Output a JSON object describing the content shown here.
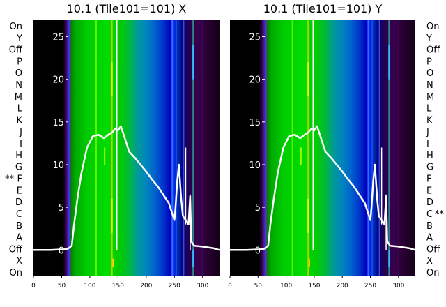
{
  "chart_data": [
    {
      "type": "heatmap",
      "title": "10.1 (Tile101=101) X",
      "xlabel": "",
      "ylabel": "",
      "xlim": [
        0,
        330
      ],
      "ylim": [
        -3,
        27
      ],
      "x_ticks": [
        0,
        50,
        100,
        150,
        200,
        250,
        300
      ],
      "y_ticks": [
        0,
        5,
        10,
        15,
        20,
        25
      ],
      "row_labels": [
        "On",
        "Y",
        "Off",
        "P",
        "O",
        "N",
        "M",
        "L",
        "K",
        "J",
        "I",
        "H",
        "G",
        "F",
        "E",
        "D",
        "C",
        "B",
        "A",
        "Off",
        "X",
        "On"
      ],
      "marked_row": "F",
      "marker": "**",
      "series": [
        {
          "x": [
            0,
            30,
            60,
            68,
            72,
            78,
            85,
            95,
            105,
            115,
            125,
            135,
            140,
            145,
            150,
            155,
            160,
            165,
            170,
            180,
            190,
            200,
            210,
            220,
            230,
            240,
            245,
            250,
            252,
            255,
            258,
            262,
            265,
            270,
            275,
            278,
            280,
            285,
            300,
            310,
            320,
            330
          ],
          "y": [
            0,
            0,
            0.1,
            0.5,
            3,
            6,
            9,
            12,
            13.3,
            13.5,
            13.1,
            13.6,
            13.8,
            14.2,
            14.0,
            14.5,
            13.5,
            12.5,
            11.5,
            10.8,
            10.0,
            9.2,
            8.3,
            7.5,
            6.5,
            5.5,
            4.5,
            3.5,
            5,
            8,
            10,
            6,
            4,
            3.5,
            3.0,
            6.3,
            1.0,
            0.5,
            0.4,
            0.3,
            0.2,
            0
          ]
        }
      ]
    },
    {
      "type": "heatmap",
      "title": "10.1 (Tile101=101) Y",
      "xlabel": "",
      "ylabel": "",
      "xlim": [
        0,
        330
      ],
      "ylim": [
        -3,
        27
      ],
      "x_ticks": [
        0,
        50,
        100,
        150,
        200,
        250,
        300
      ],
      "y_ticks": [
        0,
        5,
        10,
        15,
        20,
        25
      ],
      "row_labels": [
        "On",
        "Y",
        "Off",
        "P",
        "O",
        "N",
        "M",
        "L",
        "K",
        "J",
        "I",
        "H",
        "G",
        "F",
        "E",
        "D",
        "C",
        "B",
        "A",
        "Off",
        "X",
        "On"
      ],
      "marked_row": "C",
      "marker": "**",
      "series": [
        {
          "x": [
            0,
            30,
            60,
            68,
            72,
            78,
            85,
            95,
            105,
            115,
            125,
            135,
            140,
            145,
            150,
            155,
            160,
            165,
            170,
            180,
            190,
            200,
            210,
            220,
            230,
            240,
            245,
            250,
            252,
            255,
            258,
            262,
            265,
            270,
            275,
            278,
            280,
            285,
            300,
            310,
            320,
            330
          ],
          "y": [
            0,
            0,
            0.1,
            0.5,
            3,
            6,
            9,
            12,
            13.3,
            13.5,
            13.1,
            13.6,
            13.8,
            14.2,
            14.0,
            14.5,
            13.5,
            12.5,
            11.5,
            10.8,
            10.0,
            9.2,
            8.3,
            7.5,
            6.5,
            5.5,
            4.5,
            3.5,
            5,
            8,
            10,
            6,
            4,
            3.5,
            3.0,
            6.3,
            1.0,
            0.5,
            0.4,
            0.3,
            0.2,
            0
          ]
        }
      ]
    }
  ]
}
